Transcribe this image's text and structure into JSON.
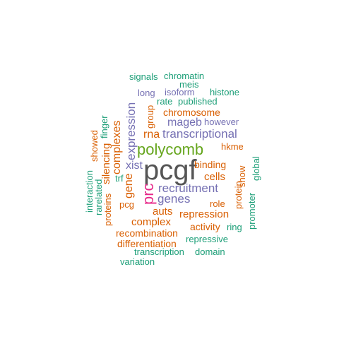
{
  "colors": {
    "gray": "#555555",
    "green": "#66a61e",
    "pink": "#e7298a",
    "purple": "#7570b3",
    "orange": "#d95f02",
    "teal": "#1b9e77"
  },
  "words": {
    "pcgf": "pcgf",
    "polycomb": "polycomb",
    "prc": "prc",
    "recruitment": "recruitment",
    "transcriptional": "transcriptional",
    "genes": "genes",
    "expression": "expression",
    "xist": "xist",
    "mageb": "mageb",
    "complexes": "complexes",
    "gene": "gene",
    "rna": "rna",
    "chromosome": "chromosome",
    "auts": "auts",
    "complex": "complex",
    "cells": "cells",
    "repression": "repression",
    "binding": "binding",
    "recombination": "recombination",
    "differentiation": "differentiation",
    "silencing": "silencing",
    "hkme": "hkme",
    "however": "however",
    "group": "group",
    "activity": "activity",
    "role": "role",
    "show": "show",
    "protein": "protein",
    "proteins": "proteins",
    "showed": "showed",
    "pcg": "pcg",
    "signals": "signals",
    "chromatin": "chromatin",
    "meis": "meis",
    "long": "long",
    "isoform": "isoform",
    "histone": "histone",
    "rate": "rate",
    "published": "published",
    "finger": "finger",
    "trf": "trf",
    "interaction": "interaction",
    "rarelated": "rarelated",
    "global": "global",
    "promoter": "promoter",
    "ring": "ring",
    "repressive": "repressive",
    "transcription": "transcription",
    "domain": "domain",
    "variation": "variation"
  }
}
